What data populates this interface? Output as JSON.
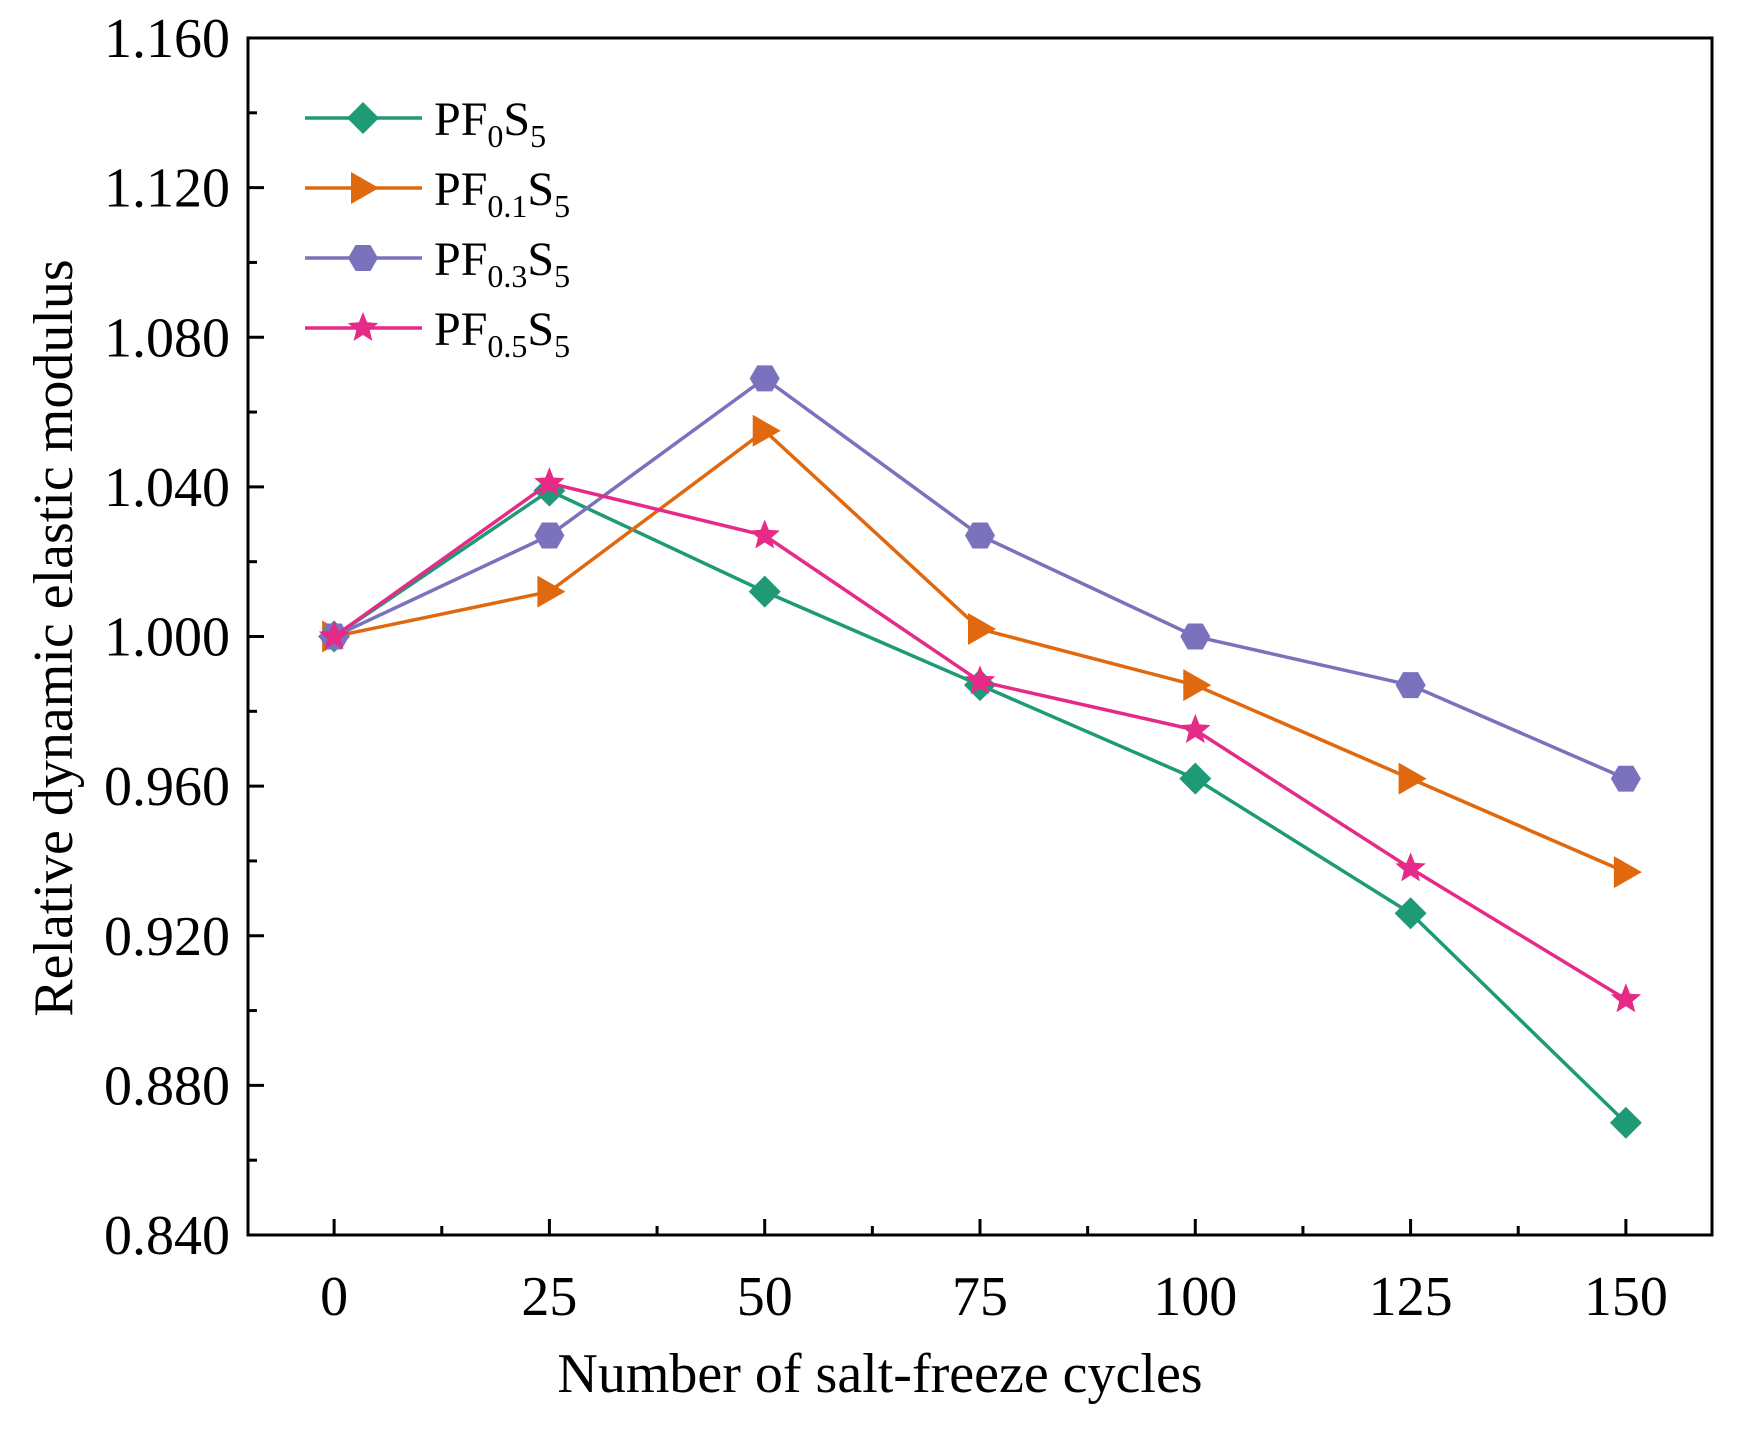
{
  "chart_data": {
    "type": "line",
    "title": "",
    "xlabel": "Number of salt-freeze cycles",
    "ylabel": "Relative dynamic elastic modulus",
    "x": [
      0,
      25,
      50,
      75,
      100,
      125,
      150
    ],
    "xticks": [
      "0",
      "25",
      "50",
      "75",
      "100",
      "125",
      "150"
    ],
    "xlim": [
      -10,
      160
    ],
    "ylim": [
      0.84,
      1.16
    ],
    "yticks": [
      "0.840",
      "0.880",
      "0.920",
      "0.960",
      "1.000",
      "1.040",
      "1.080",
      "1.120",
      "1.160"
    ],
    "ytick_values": [
      0.84,
      0.88,
      0.92,
      0.96,
      1.0,
      1.04,
      1.08,
      1.12,
      1.16
    ],
    "grid": false,
    "legend_position": "top-left",
    "series": [
      {
        "name": "PF0S5",
        "label_main": "PF",
        "label_sub1": "0",
        "label_mid": "S",
        "label_sub2": "5",
        "color": "#1f9a77",
        "marker": "diamond",
        "values": [
          1.0,
          1.039,
          1.012,
          0.987,
          0.962,
          0.926,
          0.87
        ]
      },
      {
        "name": "PF0.1S5",
        "label_main": "PF",
        "label_sub1": "0.1",
        "label_mid": "S",
        "label_sub2": "5",
        "color": "#e0690f",
        "marker": "triangle-right",
        "values": [
          1.0,
          1.012,
          1.055,
          1.002,
          0.987,
          0.962,
          0.937
        ]
      },
      {
        "name": "PF0.3S5",
        "label_main": "PF",
        "label_sub1": "0.3",
        "label_mid": "S",
        "label_sub2": "5",
        "color": "#7b72bd",
        "marker": "hexagon",
        "values": [
          1.0,
          1.027,
          1.069,
          1.027,
          1.0,
          0.987,
          0.962
        ]
      },
      {
        "name": "PF0.5S5",
        "label_main": "PF",
        "label_sub1": "0.5",
        "label_mid": "S",
        "label_sub2": "5",
        "color": "#e52a87",
        "marker": "star",
        "values": [
          1.0,
          1.041,
          1.027,
          0.988,
          0.975,
          0.938,
          0.903
        ]
      }
    ]
  }
}
